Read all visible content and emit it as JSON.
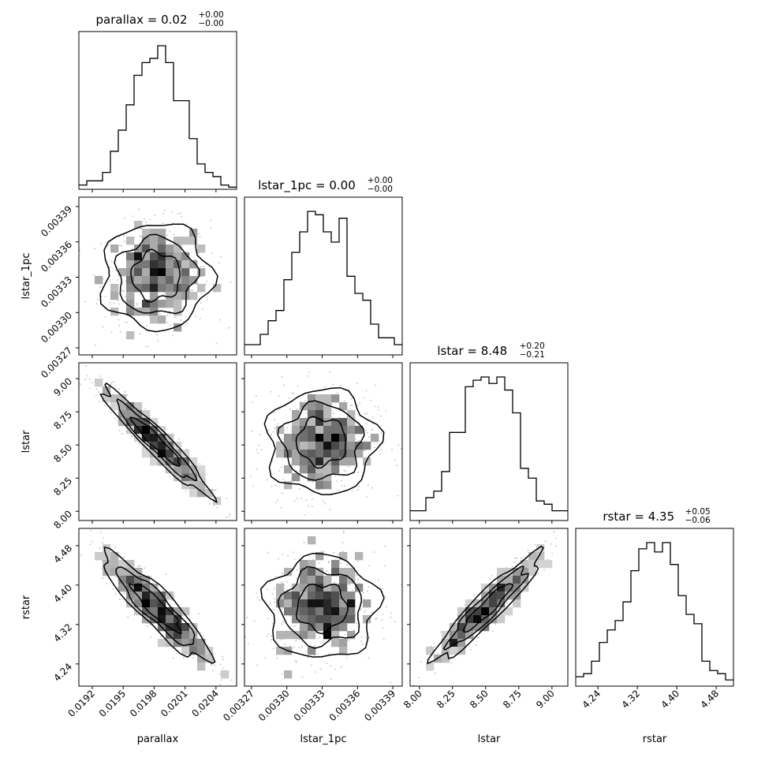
{
  "chart_data": {
    "type": "corner",
    "parameters": [
      "parallax",
      "lstar_1pc",
      "lstar",
      "rstar"
    ],
    "titles": [
      {
        "name": "parallax",
        "median": "0.02",
        "plus": "+0.00",
        "minus": "−0.00"
      },
      {
        "name": "lstar_1pc",
        "median": "0.00",
        "plus": "+0.00",
        "minus": "−0.00"
      },
      {
        "name": "lstar",
        "median": "8.48",
        "plus": "+0.20",
        "minus": "−0.21"
      },
      {
        "name": "rstar",
        "median": "4.35",
        "plus": "+0.05",
        "minus": "−0.06"
      }
    ],
    "ranges": [
      [
        0.01907,
        0.0206
      ],
      [
        0.003264,
        0.003398
      ],
      [
        7.93,
        9.12
      ],
      [
        4.195,
        4.515
      ]
    ],
    "ticks": [
      {
        "values": [
          0.0192,
          0.0195,
          0.0198,
          0.0201,
          0.0204
        ],
        "labels": [
          "0.0192",
          "0.0195",
          "0.0198",
          "0.0201",
          "0.0204"
        ]
      },
      {
        "values": [
          0.00327,
          0.0033,
          0.00333,
          0.00336,
          0.00339
        ],
        "labels": [
          "0.00327",
          "0.00330",
          "0.00333",
          "0.00336",
          "0.00339"
        ]
      },
      {
        "values": [
          8.0,
          8.25,
          8.5,
          8.75,
          9.0
        ],
        "labels": [
          "8.00",
          "8.25",
          "8.50",
          "8.75",
          "9.00"
        ]
      },
      {
        "values": [
          4.24,
          4.32,
          4.4,
          4.48
        ],
        "labels": [
          "4.24",
          "4.32",
          "4.40",
          "4.48"
        ]
      }
    ],
    "histograms": [
      [
        1,
        2,
        2,
        4,
        9,
        14,
        20,
        27,
        30,
        31,
        34,
        30,
        21,
        21,
        12,
        6,
        4,
        3,
        1,
        0.5
      ],
      [
        3,
        3,
        6,
        10,
        13,
        22,
        30,
        36,
        42,
        41,
        36,
        33,
        40,
        23,
        18,
        16,
        9,
        5,
        5,
        3
      ],
      [
        3,
        3,
        7,
        9,
        15,
        27,
        27,
        41,
        43,
        44,
        42,
        44,
        40,
        33,
        16,
        13,
        6,
        5,
        3,
        3
      ],
      [
        3,
        4,
        8,
        14,
        18,
        21,
        27,
        37,
        44,
        46,
        43,
        46,
        39,
        29,
        23,
        20,
        8,
        5,
        4,
        2
      ]
    ],
    "correlations": {
      "1-0": 0.02,
      "2-0": -0.95,
      "2-1": 0.05,
      "3-0": -0.9,
      "3-1": 0.08,
      "3-2": 0.93
    }
  }
}
